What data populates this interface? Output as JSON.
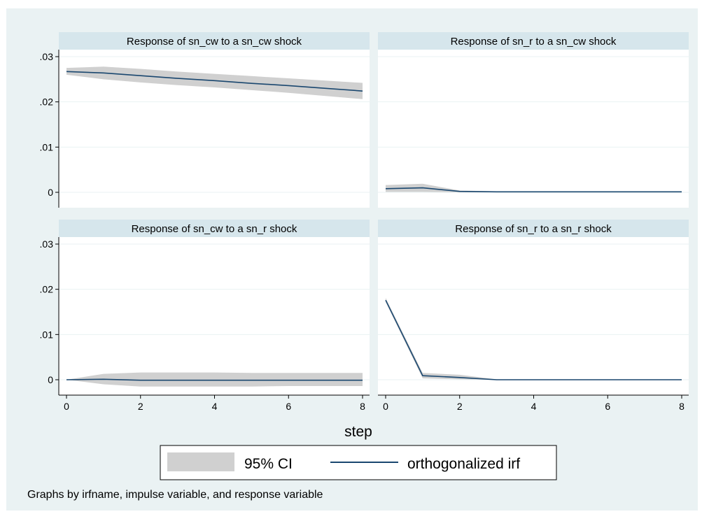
{
  "colors": {
    "outer_background": "#eaf2f3",
    "plot_background": "#ffffff",
    "panel_title_band": "#d6e6ec",
    "gridline": "#eaf2f3",
    "ci_fill": "#d0d0d0",
    "irf_line": "#1a476f"
  },
  "chart_data": {
    "type": "line",
    "xlabel": "step",
    "x": [
      0,
      1,
      2,
      3,
      4,
      5,
      6,
      7,
      8
    ],
    "xlim": [
      0,
      8
    ],
    "ylim": [
      -0.002,
      0.032
    ],
    "xticks": [
      0,
      2,
      4,
      6,
      8
    ],
    "xtick_labels": [
      "0",
      "2",
      "4",
      "6",
      "8"
    ],
    "yticks": [
      0,
      0.01,
      0.02,
      0.03
    ],
    "ytick_labels": [
      "0",
      ".01",
      ".02",
      ".03"
    ],
    "grid": true,
    "legend": {
      "placement": "bottom",
      "items": [
        {
          "label": "95% CI",
          "kind": "area",
          "color": "#d0d0d0"
        },
        {
          "label": "orthogonalized irf",
          "kind": "line",
          "color": "#1a476f"
        }
      ]
    },
    "note": "Graphs by irfname, impulse variable, and response variable",
    "panels": [
      {
        "title": "Response of sn_cw to a sn_cw shock",
        "irf": [
          0.0267,
          0.0264,
          0.0258,
          0.0252,
          0.0247,
          0.0241,
          0.0236,
          0.023,
          0.0224
        ],
        "lower": [
          0.026,
          0.025,
          0.0243,
          0.0237,
          0.0232,
          0.0226,
          0.022,
          0.0213,
          0.0206
        ],
        "upper": [
          0.0275,
          0.0278,
          0.0273,
          0.0267,
          0.0262,
          0.0257,
          0.0252,
          0.0247,
          0.0242
        ]
      },
      {
        "title": "Response of sn_r to a sn_cw shock",
        "irf": [
          0.0008,
          0.001,
          0.0002,
          0.0001,
          0.0001,
          0.0001,
          0.0001,
          0.0001,
          0.0001
        ],
        "lower": [
          0.0001,
          0.0001,
          0.0,
          0.0,
          0.0,
          0.0,
          0.0,
          0.0,
          0.0
        ],
        "upper": [
          0.0016,
          0.0019,
          0.0004,
          0.0002,
          0.0002,
          0.0002,
          0.0002,
          0.0002,
          0.0002
        ]
      },
      {
        "title": "Response of sn_cw to a sn_r shock",
        "irf": [
          0.0,
          0.0001,
          -0.0001,
          -0.0001,
          -0.0001,
          -0.0001,
          -0.0001,
          -0.0001,
          -0.0001
        ],
        "lower": [
          0.0,
          -0.001,
          -0.0015,
          -0.0015,
          -0.0015,
          -0.0015,
          -0.0014,
          -0.0014,
          -0.0014
        ],
        "upper": [
          0.0,
          0.0013,
          0.0016,
          0.0016,
          0.0016,
          0.0015,
          0.0015,
          0.0015,
          0.0015
        ]
      },
      {
        "title": "Response of sn_r to a sn_r shock",
        "irf": [
          0.0176,
          0.0009,
          0.0005,
          0.0,
          0.0,
          0.0,
          0.0,
          0.0,
          0.0
        ],
        "lower": [
          0.0172,
          0.0003,
          0.0001,
          0.0,
          0.0,
          0.0,
          0.0,
          0.0,
          0.0
        ],
        "upper": [
          0.0181,
          0.0015,
          0.0011,
          0.0001,
          0.0,
          0.0,
          0.0,
          0.0,
          0.0
        ]
      }
    ]
  }
}
